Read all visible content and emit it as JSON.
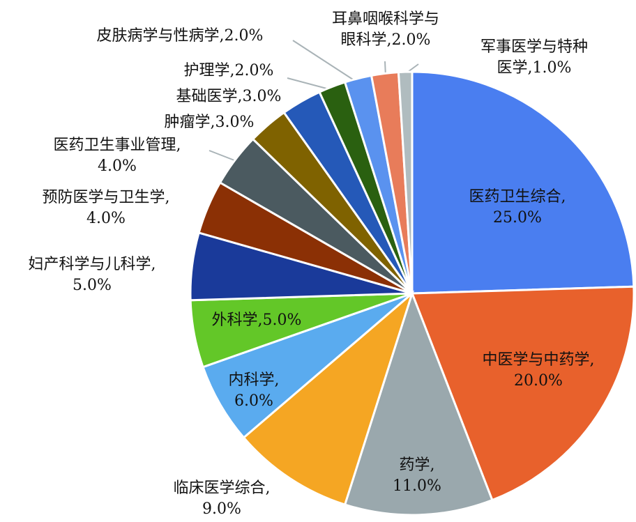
{
  "chart_data": {
    "type": "pie",
    "categories": [
      "医药卫生综合",
      "中医学与中药学",
      "药学",
      "临床医学综合",
      "内科学",
      "外科学",
      "妇产科学与儿科学",
      "预防医学与卫生学",
      "医药卫生事业管理",
      "肿瘤学",
      "基础医学",
      "护理学",
      "皮肤病学与性病学",
      "耳鼻咽喉科学与眼科学",
      "军事医学与特种医学"
    ],
    "values": [
      25,
      20,
      11,
      9,
      6,
      5,
      5,
      4,
      4,
      3,
      3,
      2,
      2,
      2,
      1
    ],
    "value_labels": [
      "25.0%",
      "20.0%",
      "11.0%",
      "9.0%",
      "6.0%",
      "5.0%",
      "5.0%",
      "4.0%",
      "4.0%",
      "3.0%",
      "3.0%",
      "2.0%",
      "2.0%",
      "2.0%",
      "1.0%"
    ],
    "label_separator": ",",
    "colors": [
      "#4a7ef0",
      "#e8612c",
      "#9aa8ad",
      "#f5a623",
      "#5aabef",
      "#63c728",
      "#1a3a9a",
      "#8b3005",
      "#4b5a60",
      "#7f6200",
      "#2559b8",
      "#2a6010",
      "#5a92ef",
      "#e87c5a",
      "#b0bcbf"
    ]
  }
}
